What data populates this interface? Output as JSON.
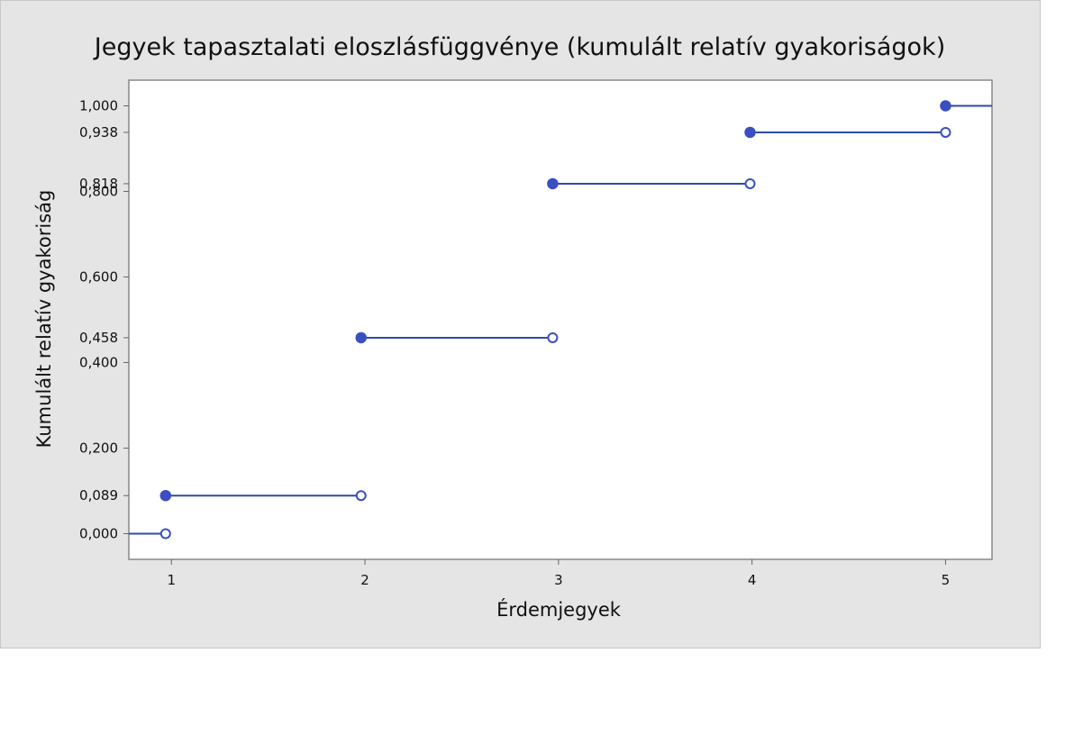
{
  "chart_data": {
    "type": "line",
    "subtype": "empirical-cdf-step",
    "title": "Jegyek tapasztalati eloszlásfüggvénye (kumulált relatív gyakoriságok)",
    "xlabel": "Érdemjegyek",
    "ylabel": "Kumulált relatív gyakoriság",
    "xlim": [
      0.78,
      5.24
    ],
    "ylim": [
      -0.06,
      1.06
    ],
    "xticks": [
      1,
      2,
      3,
      4,
      5
    ],
    "xtick_labels": [
      "1",
      "2",
      "3",
      "4",
      "5"
    ],
    "yticks": [
      0,
      0.089,
      0.2,
      0.4,
      0.458,
      0.6,
      0.8,
      0.818,
      0.938,
      1.0
    ],
    "ytick_labels": [
      "0,000",
      "0,089",
      "0,200",
      "0,400",
      "0,458",
      "0,600",
      "0,800",
      "0,818",
      "0,938",
      "1,000"
    ],
    "grid": false,
    "series": [
      {
        "segments": [
          {
            "x_start": 0.78,
            "x_end": 0.97,
            "y": 0.0,
            "start_closed": false,
            "end_closed": false
          },
          {
            "x_start": 0.97,
            "x_end": 1.98,
            "y": 0.089,
            "start_closed": true,
            "end_closed": false
          },
          {
            "x_start": 1.98,
            "x_end": 2.97,
            "y": 0.458,
            "start_closed": true,
            "end_closed": false
          },
          {
            "x_start": 2.97,
            "x_end": 3.99,
            "y": 0.818,
            "start_closed": true,
            "end_closed": false
          },
          {
            "x_start": 3.99,
            "x_end": 5.0,
            "y": 0.938,
            "start_closed": true,
            "end_closed": false
          },
          {
            "x_start": 5.0,
            "x_end": 5.24,
            "y": 1.0,
            "start_closed": true,
            "end_closed": false
          }
        ]
      }
    ],
    "colors": {
      "line": "#2f4aa8",
      "marker": "#3a4fc0",
      "plot_bg": "#ffffff",
      "frame_bg": "#e5e5e5",
      "axis": "#888888"
    }
  }
}
